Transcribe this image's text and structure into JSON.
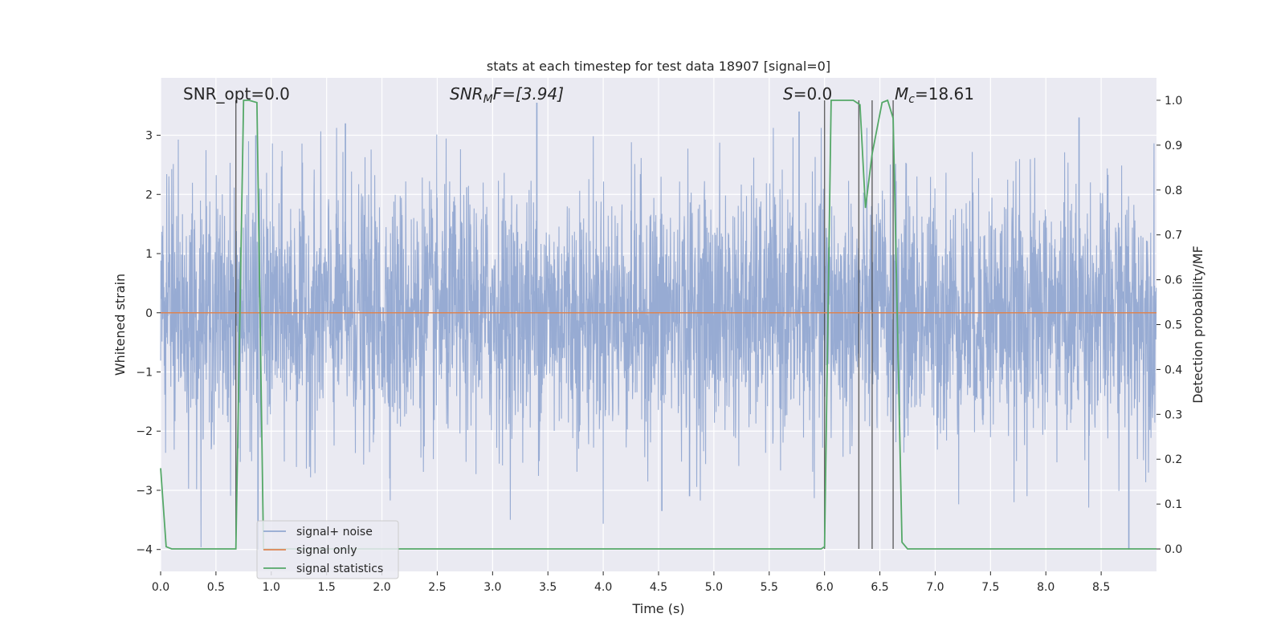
{
  "chart_data": {
    "type": "line",
    "title": "stats at each timestep for test data 18907 [signal=0]",
    "xlabel": "Time (s)",
    "ylabel": "Whitened strain",
    "y2label": "Detection probability/MF",
    "xlim": [
      0.0,
      9.0
    ],
    "ylim": [
      -4.37,
      3.97
    ],
    "y2lim": [
      -0.05,
      1.05
    ],
    "xticks": [
      0.0,
      0.5,
      1.0,
      1.5,
      2.0,
      2.5,
      3.0,
      3.5,
      4.0,
      4.5,
      5.0,
      5.5,
      6.0,
      6.5,
      7.0,
      7.5,
      8.0,
      8.5
    ],
    "xtick_labels": [
      "0.0",
      "0.5",
      "1.0",
      "1.5",
      "2.0",
      "2.5",
      "3.0",
      "3.5",
      "4.0",
      "4.5",
      "5.0",
      "5.5",
      "6.0",
      "6.5",
      "7.0",
      "7.5",
      "8.0",
      "8.5"
    ],
    "yticks": [
      -4,
      -3,
      -2,
      -1,
      0,
      1,
      2,
      3
    ],
    "ytick_labels": [
      "−4",
      "−3",
      "−2",
      "−1",
      "0",
      "1",
      "2",
      "3"
    ],
    "y2ticks": [
      0.0,
      0.1,
      0.2,
      0.3,
      0.4,
      0.5,
      0.6,
      0.7,
      0.8,
      0.9,
      1.0
    ],
    "y2tick_labels": [
      "0.0",
      "0.1",
      "0.2",
      "0.3",
      "0.4",
      "0.5",
      "0.6",
      "0.7",
      "0.8",
      "0.9",
      "1.0"
    ],
    "grid": true,
    "legend_position": "lower-left",
    "annotations": {
      "snr_opt": "SNR_opt=0.0",
      "snr_mf_prefix": "SNR",
      "snr_mf_sub": "M",
      "snr_mf_suffix": "F=[3.94]",
      "s_prefix": "S",
      "s_suffix": "=0.0",
      "mc_prefix": "M",
      "mc_sub": "c",
      "mc_suffix": "=18.61"
    },
    "vertical_markers_x": [
      0.68,
      6.0,
      6.31,
      6.43,
      6.62
    ],
    "series": [
      {
        "name": "signal+ noise",
        "color": "#92a8d1",
        "kind": "noise",
        "envelope": {
          "typical_amplitude": 1.7,
          "peak_max": 3.55,
          "peak_min": -4.0
        },
        "notable_peaks": [
          {
            "x": 0.86,
            "y": 3.0
          },
          {
            "x": 0.88,
            "y": -4.0
          },
          {
            "x": 1.67,
            "y": 3.2
          },
          {
            "x": 3.4,
            "y": 3.55
          },
          {
            "x": 4.53,
            "y": -3.35
          },
          {
            "x": 4.78,
            "y": -3.1
          },
          {
            "x": 5.77,
            "y": 3.4
          },
          {
            "x": 8.3,
            "y": 3.3
          },
          {
            "x": 8.75,
            "y": -4.0
          }
        ]
      },
      {
        "name": "signal only",
        "color": "#dd8452",
        "kind": "line",
        "x": [
          0.0,
          9.0
        ],
        "y": [
          0.0,
          0.0
        ]
      },
      {
        "name": "signal statistics",
        "color": "#55a868",
        "kind": "line",
        "axis": "right",
        "x": [
          0.0,
          0.05,
          0.1,
          0.68,
          0.75,
          0.8,
          0.87,
          0.93,
          0.98,
          5.97,
          6.0,
          6.06,
          6.26,
          6.32,
          6.37,
          6.43,
          6.52,
          6.57,
          6.62,
          6.7,
          6.75,
          9.0
        ],
        "y": [
          0.18,
          0.005,
          0.0,
          0.0,
          1.0,
          1.0,
          0.995,
          0.0,
          0.0,
          0.0,
          0.005,
          1.0,
          1.0,
          0.99,
          0.76,
          0.88,
          0.995,
          1.0,
          0.96,
          0.015,
          0.0,
          0.0
        ]
      }
    ]
  }
}
